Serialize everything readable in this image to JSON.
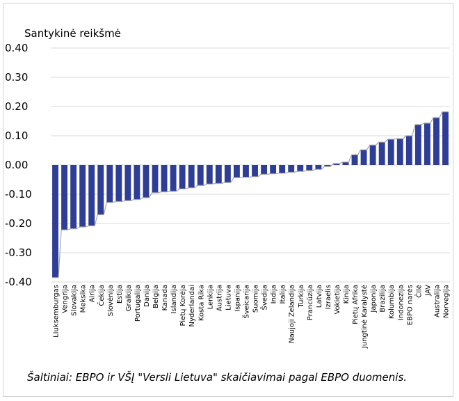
{
  "chart_data": {
    "type": "bar",
    "ylabel": "Santykinė reikšmė",
    "ylim": [
      -0.4,
      0.4
    ],
    "yticks": [
      "0.40",
      "0.30",
      "0.20",
      "0.10",
      "0.00",
      "-0.10",
      "-0.20",
      "-0.30",
      "-0.40"
    ],
    "grid": true,
    "bar_color": "#2e3d96",
    "line_color": "#a6a6a6",
    "categories": [
      "Liuksemburgas",
      "Vengrija",
      "Slovakija",
      "Meksika",
      "Airija",
      "Čekija",
      "Slovėnija",
      "Estija",
      "Graikija",
      "Portugalija",
      "Danija",
      "Belgija",
      "Kanada",
      "Islandija",
      "Pietų Korėja",
      "Nyderlandai",
      "Kosta Rika",
      "Lenkija",
      "Austrija",
      "Lietuva",
      "Ispanija",
      "Šveicarija",
      "Suomija",
      "Švedija",
      "Indija",
      "Italija",
      "Naujoji Zelandija",
      "Turkija",
      "Prancūzija",
      "Latvija",
      "Izraelis",
      "Vokietija",
      "Kinija",
      "Pietų Afrika",
      "Jungtinė Karalystė",
      "Japonija",
      "Brazilija",
      "Kolumbija",
      "Indonezija",
      "EBPO narės",
      "Čilė",
      "JAV",
      "Australija",
      "Norvegija"
    ],
    "values": [
      -0.385,
      -0.222,
      -0.218,
      -0.212,
      -0.208,
      -0.17,
      -0.128,
      -0.125,
      -0.122,
      -0.118,
      -0.112,
      -0.095,
      -0.092,
      -0.09,
      -0.082,
      -0.078,
      -0.07,
      -0.065,
      -0.063,
      -0.06,
      -0.043,
      -0.042,
      -0.04,
      -0.032,
      -0.03,
      -0.028,
      -0.025,
      -0.022,
      -0.019,
      -0.015,
      -0.005,
      0.005,
      0.01,
      0.035,
      0.052,
      0.068,
      0.078,
      0.088,
      0.09,
      0.1,
      0.138,
      0.143,
      0.162,
      0.182
    ]
  },
  "source_note": "Šaltiniai:  EBPO ir VŠĮ \"Versli Lietuva\" skaičiavimai pagal EBPO duomenis."
}
